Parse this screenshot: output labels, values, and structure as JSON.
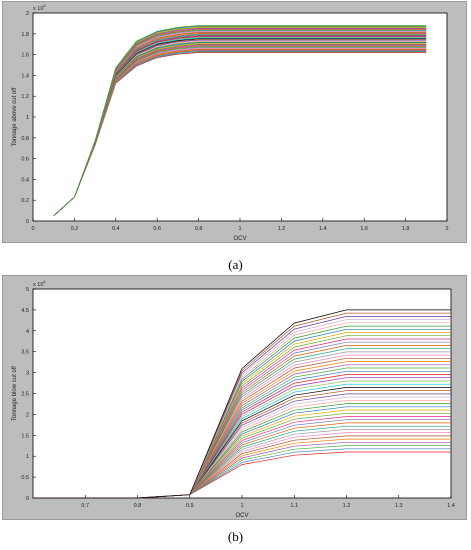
{
  "chart_data": [
    {
      "type": "line",
      "xlabel": "OCV",
      "ylabel": "Tonnage above cut off",
      "exponent": "x 10",
      "exponent_power": "5",
      "xlim": [
        0,
        2
      ],
      "ylim": [
        0,
        2
      ],
      "xticks": [
        "0",
        "0.2",
        "0.4",
        "0.6",
        "0.8",
        "1",
        "1.2",
        "1.4",
        "1.6",
        "1.8",
        "2"
      ],
      "yticks": [
        "0",
        "0.2",
        "0.4",
        "0.6",
        "0.8",
        "1",
        "1.2",
        "1.4",
        "1.6",
        "1.8",
        "2"
      ],
      "x": [
        0.1,
        0.2,
        0.3,
        0.4,
        0.5,
        0.6,
        0.7,
        0.8,
        0.9,
        1.0,
        1.2,
        1.4,
        1.6,
        1.9
      ],
      "series_count": 40,
      "final_range": [
        1.62,
        1.88
      ],
      "colors": [
        "#e41a1c",
        "#377eb8",
        "#4daf4a",
        "#984ea3",
        "#ff7f00",
        "#a65628",
        "#f781bf",
        "#999999",
        "#1b9e77",
        "#d95f02",
        "#7570b3",
        "#e7298a",
        "#66a61e",
        "#e6ab02",
        "#1f78b4",
        "#33a02c",
        "#fb9a99",
        "#cab2d6",
        "#6a3d9a",
        "#b15928",
        "#000000",
        "#00bcd4",
        "#8bc34a",
        "#9c27b0"
      ]
    },
    {
      "type": "line",
      "xlabel": "OCV",
      "ylabel": "Tonnage blow cut off",
      "exponent": "x 10",
      "exponent_power": "4",
      "xlim": [
        0.6,
        1.4
      ],
      "ylim": [
        0,
        5
      ],
      "xticks": [
        "0.7",
        "0.8",
        "0.9",
        "1",
        "1.1",
        "1.2",
        "1.3",
        "1.4"
      ],
      "yticks": [
        "0",
        "0.5",
        "1",
        "1.5",
        "2",
        "2.5",
        "3",
        "3.5",
        "4",
        "4.5",
        "5"
      ],
      "x": [
        0.6,
        0.7,
        0.8,
        0.9,
        1.0,
        1.1,
        1.2,
        1.3,
        1.4
      ],
      "series_count": 45,
      "final_range": [
        1.1,
        4.5
      ],
      "colors": [
        "#e41a1c",
        "#377eb8",
        "#4daf4a",
        "#984ea3",
        "#ff7f00",
        "#a65628",
        "#f781bf",
        "#999999",
        "#1b9e77",
        "#d95f02",
        "#7570b3",
        "#e7298a",
        "#66a61e",
        "#e6ab02",
        "#1f78b4",
        "#33a02c",
        "#fb9a99",
        "#cab2d6",
        "#6a3d9a",
        "#b15928",
        "#000000",
        "#00bcd4",
        "#8bc34a",
        "#9c27b0"
      ]
    }
  ],
  "captions": {
    "a": "(a)",
    "b": "(b)"
  }
}
